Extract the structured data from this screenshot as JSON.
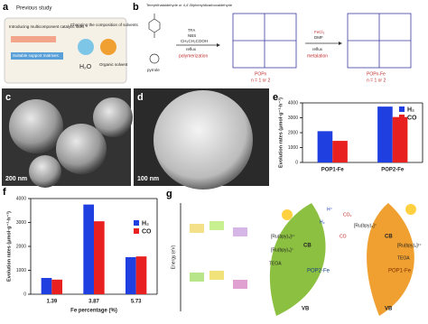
{
  "panels": {
    "a": {
      "label": "a",
      "title": "Previous study",
      "items": [
        "Introducing multicomponent catalytic sites",
        "Changing the composition of solvents",
        "Suitable support matrixes"
      ],
      "solvents": [
        "H₂O",
        "Organic solvent"
      ]
    },
    "b": {
      "label": "b",
      "reagents": "Terephthalaldehyde or 4,4'-Biphenyldicarboxaldehyde",
      "pyrrole": "pyrrole",
      "conditions1": [
        "TFA",
        "NBS",
        "CH₃CH₂COOH",
        "reflux"
      ],
      "step1": "polymerization",
      "product1": [
        "POPn",
        "n = 1 or 2"
      ],
      "conditions2": [
        "FeCl₃",
        "DMF",
        "reflux"
      ],
      "step2": "metalation",
      "product2": [
        "POPn-Fe",
        "n = 1 or 2"
      ]
    },
    "c": {
      "label": "c",
      "scale": "200 nm"
    },
    "d": {
      "label": "d",
      "scale": "100 nm"
    },
    "g": {
      "label": "g",
      "ylabel": "Energy (eV)",
      "cb": "CB",
      "vb": "VB",
      "leaf1": "POP2-Fe",
      "leaf2": "POP1-Fe",
      "teoa": "TEOA",
      "teoa_ox": "TEOA⁺",
      "ru2": "[Ru(bpy)₃]²⁺",
      "ru1": "[Ru(bpy)₃]⁺",
      "co2": "CO₂",
      "co": "CO",
      "h": "H⁺",
      "h2": "H₂"
    }
  },
  "chart_data": [
    {
      "type": "bar",
      "panel": "e",
      "ylabel": "Evolution rates (μmol·g⁻¹·h⁻¹)",
      "categories": [
        "POP1-Fe",
        "POP2-Fe"
      ],
      "series": [
        {
          "name": "H₂",
          "color": "#1f3fe0",
          "values": [
            2100,
            3750
          ]
        },
        {
          "name": "CO",
          "color": "#e82020",
          "values": [
            1450,
            3050
          ]
        }
      ],
      "ylim": [
        0,
        4000
      ],
      "yticks": [
        0,
        1000,
        2000,
        3000,
        4000
      ],
      "legend": "upper left"
    },
    {
      "type": "bar",
      "panel": "f",
      "ylabel": "Evolution rates (μmol·g⁻¹·h⁻¹)",
      "xlabel": "Fe percentage (%)",
      "categories": [
        "1.39",
        "3.87",
        "5.73"
      ],
      "series": [
        {
          "name": "H₂",
          "color": "#1f3fe0",
          "values": [
            680,
            3750,
            1550
          ]
        },
        {
          "name": "CO",
          "color": "#e82020",
          "values": [
            610,
            3050,
            1580
          ]
        }
      ],
      "ylim": [
        0,
        4000
      ],
      "yticks": [
        0,
        1000,
        2000,
        3000,
        4000
      ],
      "legend": "upper right"
    }
  ]
}
